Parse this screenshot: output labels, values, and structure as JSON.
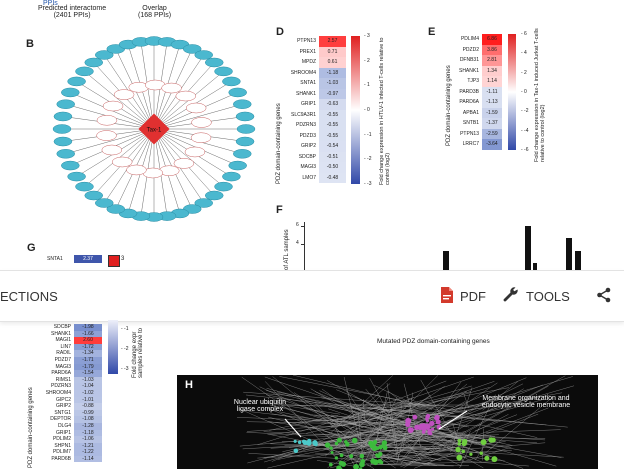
{
  "panelA": {
    "label1": "Predicted interactome",
    "sub1": "(2401 PPIs)",
    "label2": "Overlap",
    "sub2": "(168 PPIs)"
  },
  "panelB": {
    "letter": "B",
    "center": "Tax-1"
  },
  "panelD": {
    "letter": "D",
    "ylabel": "PDZ domain-containing genes",
    "cbar_label": "Fold change expression in HTLV-1 infected T-cells relative to control (log2)",
    "cbar_ticks": [
      "3",
      "2",
      "1",
      "0",
      "-1",
      "-2",
      "-3"
    ],
    "rows": [
      {
        "gene": "PTPN13",
        "value": "2.57"
      },
      {
        "gene": "PREX1",
        "value": "0.71"
      },
      {
        "gene": "MPDZ",
        "value": "0.61"
      },
      {
        "gene": "SHROOM4",
        "value": "-1.18"
      },
      {
        "gene": "SNTA1",
        "value": "-1.03"
      },
      {
        "gene": "SHANK1",
        "value": "-0.97"
      },
      {
        "gene": "GRIP1",
        "value": "-0.63"
      },
      {
        "gene": "SLC9A3R1",
        "value": "-0.55"
      },
      {
        "gene": "PDZRN3",
        "value": "-0.55"
      },
      {
        "gene": "PDZD3",
        "value": "-0.55"
      },
      {
        "gene": "GRIP2",
        "value": "-0.54"
      },
      {
        "gene": "SDCBP",
        "value": "-0.51"
      },
      {
        "gene": "MAGI3",
        "value": "-0.50"
      },
      {
        "gene": "LMO7",
        "value": "-0.48"
      }
    ]
  },
  "panelE": {
    "letter": "E",
    "ylabel": "PDZ domain-containing genes",
    "cbar_label": "Fold change expression in Tax-1 induced Jurkat T-cells relative to control (log2)",
    "cbar_ticks": [
      "6",
      "4",
      "2",
      "0",
      "-2",
      "-4",
      "-6"
    ],
    "rows": [
      {
        "gene": "PDLIM4",
        "value": "6.86"
      },
      {
        "gene": "PDZD2",
        "value": "3.86"
      },
      {
        "gene": "DFNB31",
        "value": "2.81"
      },
      {
        "gene": "SHANK1",
        "value": "1.34"
      },
      {
        "gene": "TJP3",
        "value": "1.14"
      },
      {
        "gene": "PARD3B",
        "value": "-1.11"
      },
      {
        "gene": "PARD6A",
        "value": "-1.13"
      },
      {
        "gene": "APBA1",
        "value": "-1.59"
      },
      {
        "gene": "SNTB1",
        "value": "-1.37"
      },
      {
        "gene": "PTPN13",
        "value": "-2.59"
      },
      {
        "gene": "LRRC7",
        "value": "-3.64"
      }
    ]
  },
  "panelF": {
    "letter": "F",
    "ylabel": "of ATL samples",
    "ytick1": "6",
    "ytick2": "4"
  },
  "panelG": {
    "letter": "G",
    "top_rows": [
      {
        "gene": "SNTA1",
        "value": "2.37"
      }
    ],
    "top_tick": "3",
    "bottom_rows": [
      {
        "gene": "SDCBP",
        "value": "-1.98"
      },
      {
        "gene": "SHANK1",
        "value": "-1.66"
      },
      {
        "gene": "MAGI1",
        "value": "2.60"
      },
      {
        "gene": "LIN7",
        "value": "-1.72"
      },
      {
        "gene": "RADIL",
        "value": "-1.34"
      },
      {
        "gene": "PDZD7",
        "value": "-1.71"
      },
      {
        "gene": "MAGI3",
        "value": "-1.79"
      },
      {
        "gene": "PARD6A",
        "value": "-1.54"
      },
      {
        "gene": "RIMS1",
        "value": "-1.03"
      },
      {
        "gene": "PDZRN3",
        "value": "-1.04"
      },
      {
        "gene": "SHROOM4",
        "value": "-1.02"
      },
      {
        "gene": "GIPC2",
        "value": "-1.01"
      },
      {
        "gene": "GRIP2",
        "value": "-0.88"
      },
      {
        "gene": "SNTG1",
        "value": "-0.99"
      },
      {
        "gene": "DEPTOR",
        "value": "-1.08"
      },
      {
        "gene": "DLG4",
        "value": "-1.28"
      },
      {
        "gene": "GRIP1",
        "value": "-1.18"
      },
      {
        "gene": "PDLIM2",
        "value": "-1.06"
      },
      {
        "gene": "SHPN1",
        "value": "-1.21"
      },
      {
        "gene": "PDLIM7",
        "value": "-1.22"
      },
      {
        "gene": "PARD6B",
        "value": "-1.14"
      }
    ],
    "ylabel": "PDZ domain-containing genes",
    "cbar_label": "Fold change expr samples relative to",
    "cbar_ticks": [
      "-1",
      "-2",
      "-3"
    ]
  },
  "mutated_caption": "Mutated PDZ domain-containing genes",
  "panelH": {
    "letter": "H",
    "annot1": "Nuclear ubiquitin ligase complex",
    "annot2": "Membrane organization and endocytic vesicle membrane"
  },
  "toolbar": {
    "sections_label": "ECTIONS",
    "pdf_label": "PDF",
    "tools_label": "TOOLS",
    "pdf_icon": "pdf-file-icon",
    "tools_icon": "wrench-icon",
    "share_icon": "share-icon",
    "pdf_color": "#d33a2c"
  },
  "colors": {
    "node": "#4bb8cf",
    "red": "#e03030",
    "blue": "#4a5fb0",
    "network_bg": "#0b0b0b"
  }
}
